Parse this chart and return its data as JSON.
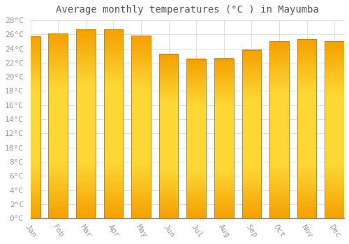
{
  "title": "Average monthly temperatures (°C ) in Mayumba",
  "months": [
    "Jan",
    "Feb",
    "Mar",
    "Apr",
    "May",
    "Jun",
    "Jul",
    "Aug",
    "Sep",
    "Oct",
    "Nov",
    "Dec"
  ],
  "values": [
    25.7,
    26.1,
    26.7,
    26.7,
    25.8,
    23.2,
    22.5,
    22.6,
    23.8,
    25.0,
    25.3,
    25.0
  ],
  "bar_color_top": "#F5A623",
  "bar_color_bottom": "#F5C842",
  "bar_color_center": "#FDD835",
  "bar_edge_color": "#C8860A",
  "ylim": [
    0,
    28
  ],
  "ytick_step": 2,
  "background_color": "#ffffff",
  "grid_color": "#e0e0e0",
  "title_fontsize": 10,
  "tick_fontsize": 8,
  "tick_color": "#999999",
  "font_family": "monospace",
  "bar_width": 0.7
}
